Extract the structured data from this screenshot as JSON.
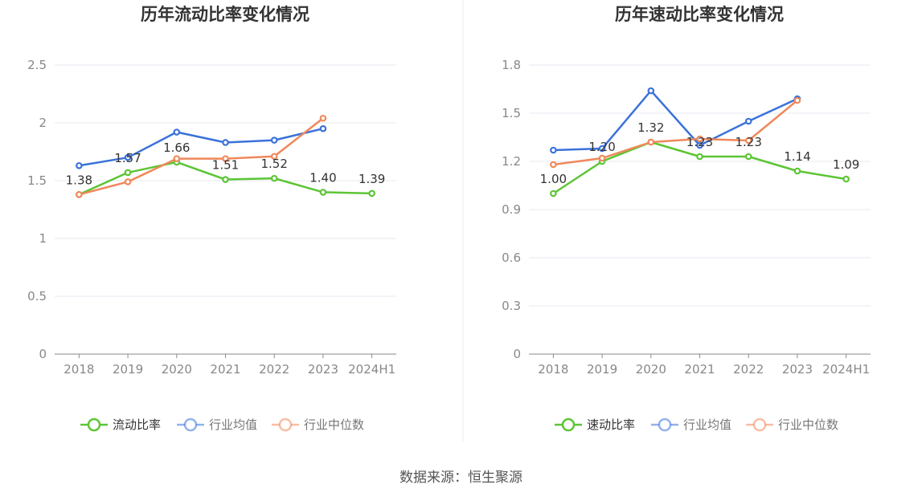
{
  "chart_data": [
    {
      "type": "line",
      "title": "历年流动比率变化情况",
      "categories": [
        "2018",
        "2019",
        "2020",
        "2021",
        "2022",
        "2023",
        "2024H1"
      ],
      "ylim": [
        0,
        2.5
      ],
      "yticks": [
        "0",
        "0.5",
        "1",
        "1.5",
        "2",
        "2.5"
      ],
      "series": [
        {
          "name": "流动比率",
          "color": "#5cc535",
          "values": [
            1.38,
            1.57,
            1.66,
            1.51,
            1.52,
            1.4,
            1.39
          ],
          "labels": [
            "1.38",
            "1.57",
            "1.66",
            "1.51",
            "1.52",
            "1.40",
            "1.39"
          ]
        },
        {
          "name": "行业均值",
          "color": "#3a72da",
          "values": [
            1.63,
            1.7,
            1.92,
            1.83,
            1.85,
            1.95,
            null
          ]
        },
        {
          "name": "行业中位数",
          "color": "#f0885a",
          "values": [
            1.38,
            1.49,
            1.69,
            1.69,
            1.71,
            2.04,
            null
          ]
        }
      ],
      "grid": true,
      "legend": "bottom"
    },
    {
      "type": "line",
      "title": "历年速动比率变化情况",
      "categories": [
        "2018",
        "2019",
        "2020",
        "2021",
        "2022",
        "2023",
        "2024H1"
      ],
      "ylim": [
        0,
        1.8
      ],
      "yticks": [
        "0",
        "0.3",
        "0.6",
        "0.9",
        "1.2",
        "1.5",
        "1.8"
      ],
      "series": [
        {
          "name": "速动比率",
          "color": "#5cc535",
          "values": [
            1.0,
            1.2,
            1.32,
            1.23,
            1.23,
            1.14,
            1.09
          ],
          "labels": [
            "1.00",
            "1.20",
            "1.32",
            "1.23",
            "1.23",
            "1.14",
            "1.09"
          ]
        },
        {
          "name": "行业均值",
          "color": "#3a72da",
          "values": [
            1.27,
            1.28,
            1.64,
            1.3,
            1.45,
            1.59,
            null
          ]
        },
        {
          "name": "行业中位数",
          "color": "#f0885a",
          "values": [
            1.18,
            1.22,
            1.32,
            1.34,
            1.33,
            1.58,
            null
          ]
        }
      ],
      "grid": true,
      "legend": "bottom"
    }
  ],
  "source": "数据来源：恒生聚源"
}
